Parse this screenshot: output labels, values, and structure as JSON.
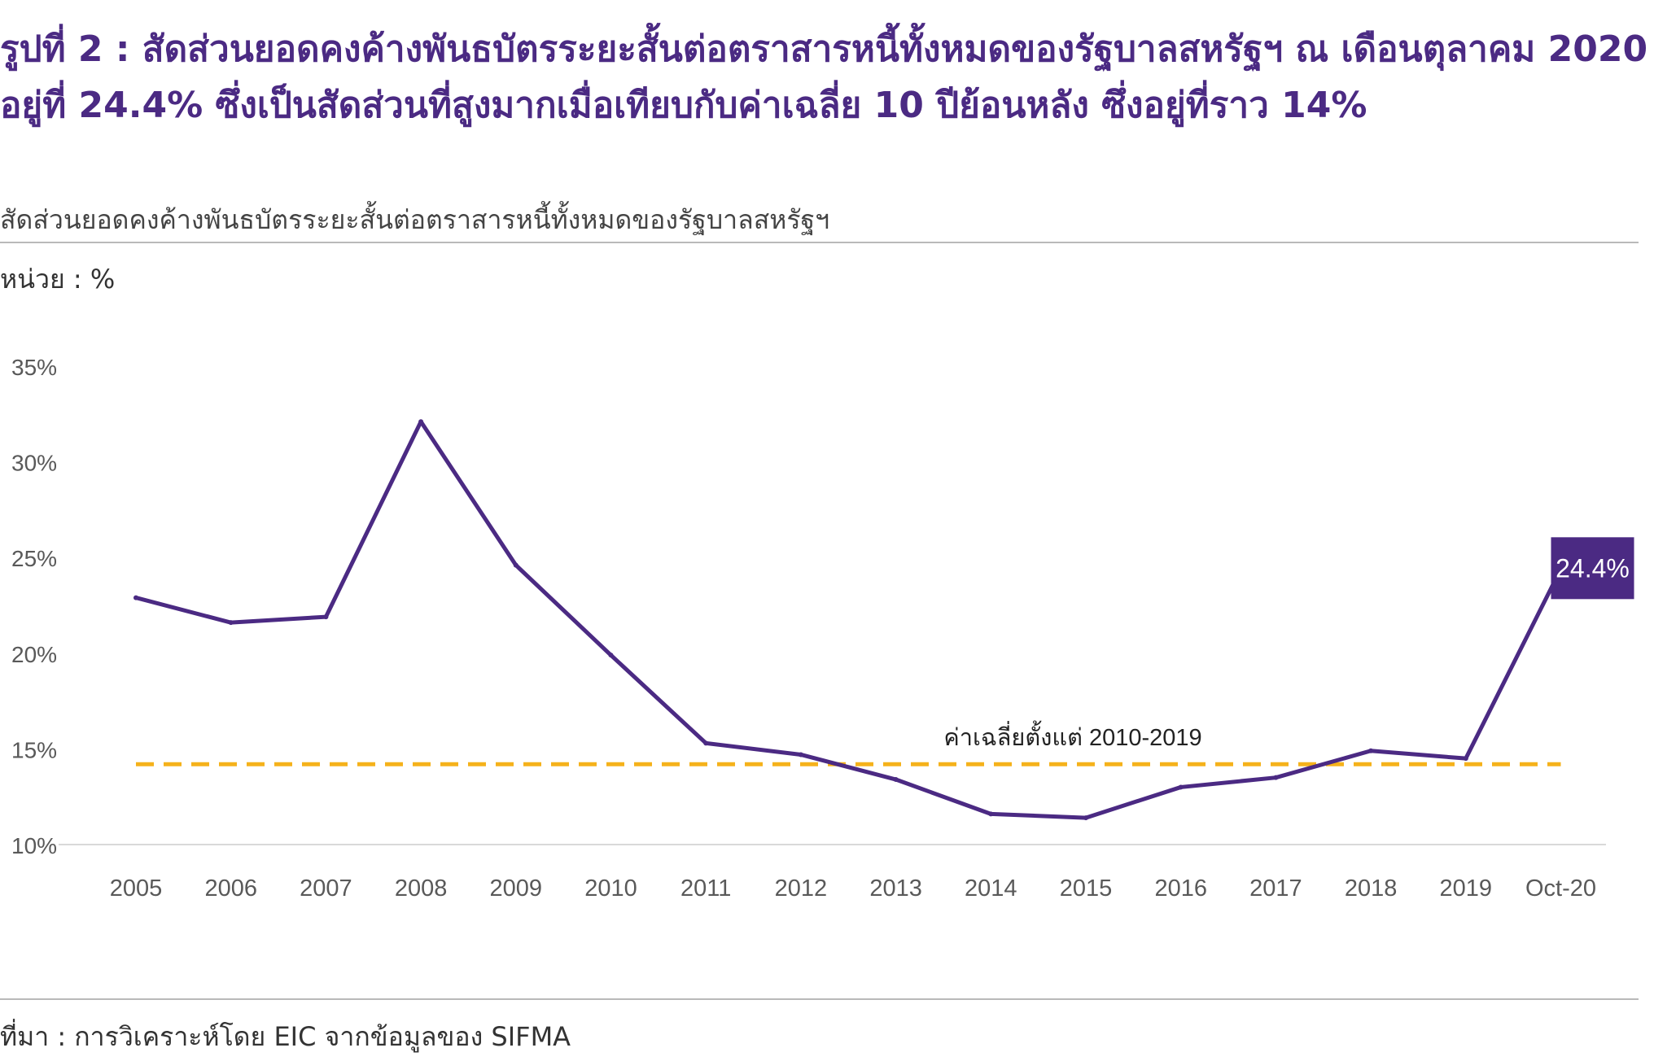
{
  "header": {
    "title": "รูปที่ 2 : สัดส่วนยอดคงค้างพันธบัตรระยะสั้นต่อตราสารหนี้ทั้งหมดของรัฐบาลสหรัฐฯ ณ เดือนตุลาคม 2020 อยู่ที่ 24.4% ซึ่งเป็นสัดส่วนที่สูงมากเมื่อเทียบกับค่าเฉลี่ย 10 ปีย้อนหลัง ซึ่งอยู่ที่ราว 14%",
    "subtitle": "สัดส่วนยอดคงค้างพันธบัตรระยะสั้นต่อตราสารหนี้ทั้งหมดของรัฐบาลสหรัฐฯ",
    "unit": "หน่วย : %"
  },
  "footer": {
    "source": "ที่มา : การวิเคราะห์โดย EIC จากข้อมูลของ SIFMA"
  },
  "colors": {
    "title": "#4b2a83",
    "line": "#4b2a83",
    "average": "#f5b21b",
    "axis_text": "#595959",
    "label_bg": "#4b2a83"
  },
  "chart_data": {
    "type": "line",
    "categories": [
      "2005",
      "2006",
      "2007",
      "2008",
      "2009",
      "2010",
      "2011",
      "2012",
      "2013",
      "2014",
      "2015",
      "2016",
      "2017",
      "2018",
      "2019",
      "Oct-20"
    ],
    "series": [
      {
        "values": [
          22.9,
          21.6,
          21.9,
          32.1,
          24.6,
          19.9,
          15.3,
          14.7,
          13.4,
          11.6,
          11.4,
          13.0,
          13.5,
          14.9,
          14.5,
          24.4
        ]
      }
    ],
    "reference_line": {
      "label": "ค่าเฉลี่ยตั้งแต่ 2010-2019",
      "value": 14.2
    },
    "end_label": "24.4%",
    "y_ticks": [
      "10%",
      "15%",
      "20%",
      "25%",
      "30%",
      "35%"
    ],
    "ylim": [
      10,
      35
    ],
    "grid": false
  }
}
